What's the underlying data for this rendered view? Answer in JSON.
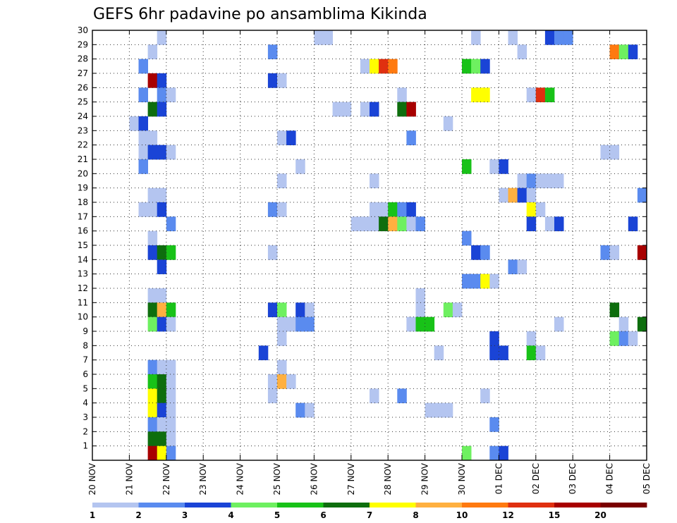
{
  "chart_data": {
    "type": "heatmap",
    "title": "GEFS 6hr padavine po ansamblima Kikinda",
    "xlabel": "",
    "ylabel": "",
    "x_ticks": [
      "20 NOV",
      "21 NOV",
      "22 NOV",
      "23 NOV",
      "24 NOV",
      "25 NOV",
      "26 NOV",
      "27 NOV",
      "28 NOV",
      "29 NOV",
      "30 NOV",
      "01 DEC",
      "02 DEC",
      "03 DEC",
      "04 DEC",
      "05 DEC"
    ],
    "xlim": [
      0,
      60
    ],
    "y_ticks": [
      "1",
      "2",
      "3",
      "4",
      "5",
      "6",
      "7",
      "8",
      "9",
      "10",
      "11",
      "12",
      "13",
      "14",
      "15",
      "16",
      "17",
      "18",
      "19",
      "20",
      "21",
      "22",
      "23",
      "24",
      "25",
      "26",
      "27",
      "28",
      "29",
      "30"
    ],
    "ylim": [
      0,
      30
    ],
    "grid": true,
    "colorbar": {
      "labels": [
        "1",
        "2",
        "3",
        "4",
        "5",
        "6",
        "7",
        "8",
        "10",
        "12",
        "15",
        "20"
      ],
      "colors": [
        "#b4c5f0",
        "#5a8bef",
        "#1a44d6",
        "#6ef060",
        "#18c218",
        "#0e6e0e",
        "#ffff00",
        "#ffb040",
        "#ff7a10",
        "#e03010",
        "#a80000",
        "#7a0000"
      ]
    },
    "cells": [
      [
        8,
        30,
        1
      ],
      [
        25,
        30,
        1
      ],
      [
        26,
        30,
        1
      ],
      [
        42,
        30,
        1
      ],
      [
        46,
        30,
        1
      ],
      [
        50,
        30,
        3
      ],
      [
        51,
        30,
        2
      ],
      [
        52,
        30,
        2
      ],
      [
        7,
        29,
        1
      ],
      [
        20,
        29,
        2
      ],
      [
        47,
        29,
        1
      ],
      [
        57,
        29,
        9
      ],
      [
        58,
        29,
        4
      ],
      [
        59,
        29,
        3
      ],
      [
        6,
        28,
        2
      ],
      [
        30,
        28,
        1
      ],
      [
        31,
        28,
        7
      ],
      [
        32,
        28,
        10
      ],
      [
        33,
        28,
        9
      ],
      [
        41,
        28,
        5
      ],
      [
        42,
        28,
        4
      ],
      [
        43,
        28,
        3
      ],
      [
        7,
        27,
        11
      ],
      [
        8,
        27,
        3
      ],
      [
        20,
        27,
        3
      ],
      [
        21,
        27,
        1
      ],
      [
        6,
        26,
        2
      ],
      [
        8,
        26,
        2
      ],
      [
        9,
        26,
        1
      ],
      [
        34,
        26,
        1
      ],
      [
        42,
        26,
        7
      ],
      [
        43,
        26,
        7
      ],
      [
        48,
        26,
        1
      ],
      [
        49,
        26,
        10
      ],
      [
        50,
        26,
        5
      ],
      [
        7,
        25,
        6
      ],
      [
        8,
        25,
        3
      ],
      [
        27,
        25,
        1
      ],
      [
        28,
        25,
        1
      ],
      [
        30,
        25,
        1
      ],
      [
        31,
        25,
        3
      ],
      [
        34,
        25,
        6
      ],
      [
        35,
        25,
        11
      ],
      [
        5,
        24,
        1
      ],
      [
        6,
        24,
        3
      ],
      [
        39,
        24,
        1
      ],
      [
        6,
        23,
        1
      ],
      [
        7,
        23,
        1
      ],
      [
        21,
        23,
        1
      ],
      [
        22,
        23,
        3
      ],
      [
        35,
        23,
        2
      ],
      [
        6,
        22,
        1
      ],
      [
        7,
        22,
        3
      ],
      [
        8,
        22,
        3
      ],
      [
        9,
        22,
        1
      ],
      [
        56,
        22,
        1
      ],
      [
        57,
        22,
        1
      ],
      [
        6,
        21,
        2
      ],
      [
        23,
        21,
        1
      ],
      [
        41,
        21,
        5
      ],
      [
        44,
        21,
        1
      ],
      [
        45,
        21,
        3
      ],
      [
        21,
        20,
        1
      ],
      [
        31,
        20,
        1
      ],
      [
        47,
        20,
        1
      ],
      [
        48,
        20,
        2
      ],
      [
        49,
        20,
        1
      ],
      [
        50,
        20,
        1
      ],
      [
        51,
        20,
        1
      ],
      [
        7,
        19,
        1
      ],
      [
        8,
        19,
        1
      ],
      [
        45,
        19,
        1
      ],
      [
        46,
        19,
        8
      ],
      [
        47,
        19,
        3
      ],
      [
        48,
        19,
        1
      ],
      [
        60,
        19,
        2
      ],
      [
        6,
        18,
        1
      ],
      [
        7,
        18,
        1
      ],
      [
        8,
        18,
        3
      ],
      [
        20,
        18,
        2
      ],
      [
        21,
        18,
        1
      ],
      [
        31,
        18,
        1
      ],
      [
        32,
        18,
        1
      ],
      [
        33,
        18,
        5
      ],
      [
        34,
        18,
        2
      ],
      [
        35,
        18,
        3
      ],
      [
        48,
        18,
        7
      ],
      [
        49,
        18,
        1
      ],
      [
        9,
        17,
        2
      ],
      [
        29,
        17,
        1
      ],
      [
        30,
        17,
        1
      ],
      [
        31,
        17,
        1
      ],
      [
        32,
        17,
        6
      ],
      [
        33,
        17,
        8
      ],
      [
        34,
        17,
        4
      ],
      [
        35,
        17,
        1
      ],
      [
        36,
        17,
        2
      ],
      [
        48,
        17,
        3
      ],
      [
        50,
        17,
        1
      ],
      [
        51,
        17,
        3
      ],
      [
        59,
        17,
        3
      ],
      [
        7,
        16,
        1
      ],
      [
        41,
        16,
        2
      ],
      [
        7,
        15,
        3
      ],
      [
        8,
        15,
        6
      ],
      [
        9,
        15,
        5
      ],
      [
        20,
        15,
        1
      ],
      [
        42,
        15,
        3
      ],
      [
        43,
        15,
        2
      ],
      [
        56,
        15,
        2
      ],
      [
        57,
        15,
        1
      ],
      [
        60,
        15,
        11
      ],
      [
        8,
        14,
        3
      ],
      [
        46,
        14,
        2
      ],
      [
        47,
        14,
        1
      ],
      [
        41,
        13,
        2
      ],
      [
        42,
        13,
        2
      ],
      [
        43,
        13,
        7
      ],
      [
        44,
        13,
        1
      ],
      [
        7,
        12,
        1
      ],
      [
        8,
        12,
        1
      ],
      [
        36,
        12,
        1
      ],
      [
        7,
        11,
        6
      ],
      [
        8,
        11,
        8
      ],
      [
        9,
        11,
        5
      ],
      [
        20,
        11,
        3
      ],
      [
        21,
        11,
        4
      ],
      [
        23,
        11,
        3
      ],
      [
        24,
        11,
        1
      ],
      [
        36,
        11,
        1
      ],
      [
        39,
        11,
        4
      ],
      [
        40,
        11,
        1
      ],
      [
        57,
        11,
        6
      ],
      [
        7,
        10,
        4
      ],
      [
        8,
        10,
        3
      ],
      [
        9,
        10,
        1
      ],
      [
        21,
        10,
        1
      ],
      [
        22,
        10,
        1
      ],
      [
        23,
        10,
        2
      ],
      [
        24,
        10,
        2
      ],
      [
        35,
        10,
        1
      ],
      [
        36,
        10,
        5
      ],
      [
        37,
        10,
        5
      ],
      [
        51,
        10,
        1
      ],
      [
        58,
        10,
        1
      ],
      [
        60,
        10,
        6
      ],
      [
        21,
        9,
        1
      ],
      [
        44,
        9,
        3
      ],
      [
        48,
        9,
        1
      ],
      [
        57,
        9,
        4
      ],
      [
        58,
        9,
        2
      ],
      [
        59,
        9,
        1
      ],
      [
        19,
        8,
        3
      ],
      [
        38,
        8,
        1
      ],
      [
        44,
        8,
        3
      ],
      [
        45,
        8,
        3
      ],
      [
        48,
        8,
        5
      ],
      [
        49,
        8,
        1
      ],
      [
        7,
        7,
        2
      ],
      [
        8,
        7,
        1
      ],
      [
        9,
        7,
        1
      ],
      [
        21,
        7,
        1
      ],
      [
        7,
        6,
        5
      ],
      [
        8,
        6,
        6
      ],
      [
        9,
        6,
        1
      ],
      [
        20,
        6,
        1
      ],
      [
        21,
        6,
        8
      ],
      [
        22,
        6,
        1
      ],
      [
        7,
        5,
        7
      ],
      [
        8,
        5,
        6
      ],
      [
        9,
        5,
        1
      ],
      [
        20,
        5,
        1
      ],
      [
        31,
        5,
        1
      ],
      [
        34,
        5,
        2
      ],
      [
        43,
        5,
        1
      ],
      [
        7,
        4,
        7
      ],
      [
        8,
        4,
        3
      ],
      [
        9,
        4,
        1
      ],
      [
        23,
        4,
        2
      ],
      [
        24,
        4,
        1
      ],
      [
        37,
        4,
        1
      ],
      [
        38,
        4,
        1
      ],
      [
        39,
        4,
        1
      ],
      [
        7,
        3,
        2
      ],
      [
        8,
        3,
        1
      ],
      [
        9,
        3,
        1
      ],
      [
        44,
        3,
        2
      ],
      [
        7,
        2,
        6
      ],
      [
        8,
        2,
        6
      ],
      [
        9,
        2,
        1
      ],
      [
        7,
        1,
        11
      ],
      [
        8,
        1,
        7
      ],
      [
        9,
        1,
        2
      ],
      [
        41,
        1,
        4
      ],
      [
        44,
        1,
        2
      ],
      [
        45,
        1,
        3
      ]
    ]
  }
}
